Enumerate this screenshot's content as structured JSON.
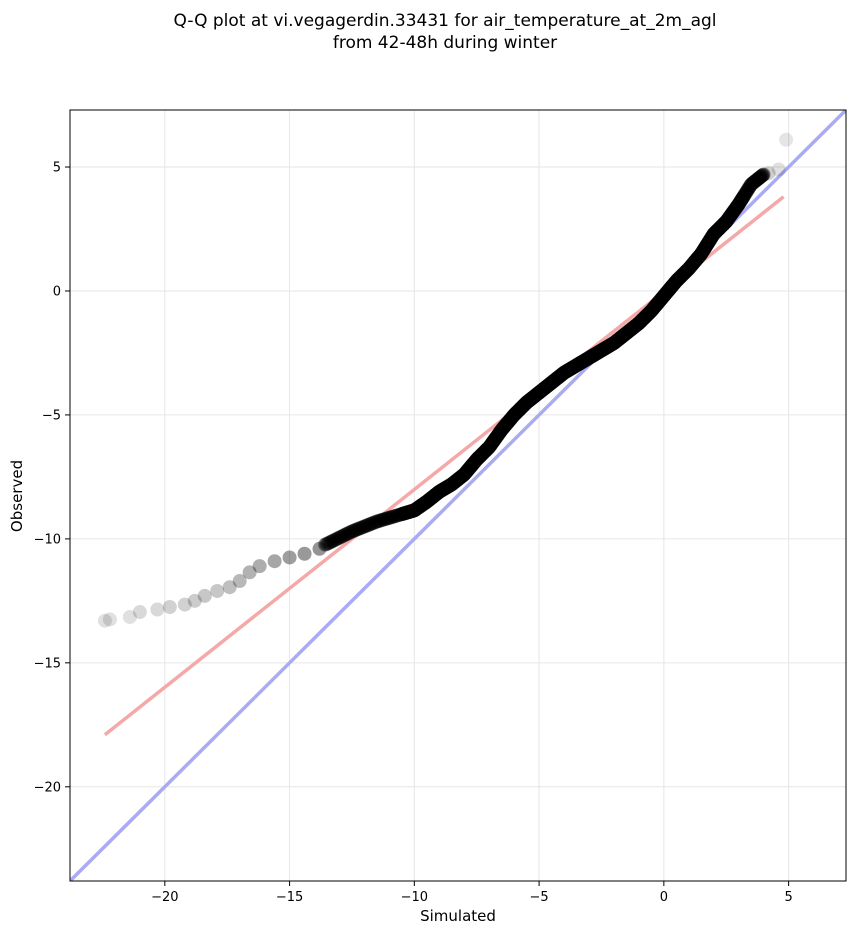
{
  "chart_data": {
    "type": "scatter",
    "title_lines": [
      "Q-Q plot at vi.vegagerdin.33431 for air_temperature_at_2m_agl",
      "from 42-48h during winter"
    ],
    "xlabel": "Simulated",
    "ylabel": "Observed",
    "xlim": [
      -23.8,
      7.3
    ],
    "ylim": [
      -23.8,
      7.3
    ],
    "xticks": [
      -20,
      -15,
      -10,
      -5,
      0,
      5
    ],
    "yticks": [
      -20,
      -15,
      -10,
      -5,
      0,
      5
    ],
    "grid": true,
    "colors": {
      "points": "#000000",
      "identity_line": "#aaaaf5",
      "fit_line": "#f5a8a8"
    },
    "identity_line": {
      "from": [
        -23.8,
        -23.8
      ],
      "to": [
        7.3,
        7.3
      ]
    },
    "fit_line": {
      "from": [
        -22.4,
        -17.9
      ],
      "to": [
        4.8,
        3.8
      ]
    },
    "quantile_curve": [
      [
        -22.4,
        -13.3
      ],
      [
        -21.5,
        -13.1
      ],
      [
        -20.5,
        -12.8
      ],
      [
        -19.5,
        -12.6
      ],
      [
        -18.5,
        -12.3
      ],
      [
        -17.5,
        -11.8
      ],
      [
        -16.5,
        -11.1
      ],
      [
        -15.5,
        -10.8
      ],
      [
        -14.5,
        -10.6
      ],
      [
        -13.5,
        -10.2
      ],
      [
        -12.5,
        -9.7
      ],
      [
        -11.5,
        -9.3
      ],
      [
        -10.5,
        -9.0
      ],
      [
        -10.0,
        -8.85
      ],
      [
        -9.5,
        -8.5
      ],
      [
        -9.0,
        -8.1
      ],
      [
        -8.5,
        -7.8
      ],
      [
        -8.0,
        -7.4
      ],
      [
        -7.5,
        -6.8
      ],
      [
        -7.0,
        -6.3
      ],
      [
        -6.5,
        -5.6
      ],
      [
        -6.0,
        -5.0
      ],
      [
        -5.5,
        -4.5
      ],
      [
        -5.0,
        -4.1
      ],
      [
        -4.5,
        -3.7
      ],
      [
        -4.0,
        -3.3
      ],
      [
        -3.5,
        -3.0
      ],
      [
        -3.0,
        -2.7
      ],
      [
        -2.5,
        -2.4
      ],
      [
        -2.0,
        -2.1
      ],
      [
        -1.5,
        -1.7
      ],
      [
        -1.0,
        -1.3
      ],
      [
        -0.5,
        -0.8
      ],
      [
        0.0,
        -0.2
      ],
      [
        0.5,
        0.4
      ],
      [
        1.0,
        0.9
      ],
      [
        1.5,
        1.5
      ],
      [
        2.0,
        2.3
      ],
      [
        2.5,
        2.8
      ],
      [
        3.0,
        3.5
      ],
      [
        3.5,
        4.3
      ],
      [
        4.0,
        4.7
      ],
      [
        4.6,
        4.9
      ]
    ],
    "tail_points": [
      [
        -22.4,
        -13.3,
        0.12
      ],
      [
        -22.2,
        -13.25,
        0.12
      ],
      [
        -21.4,
        -13.15,
        0.12
      ],
      [
        -21.0,
        -12.95,
        0.15
      ],
      [
        -20.3,
        -12.85,
        0.15
      ],
      [
        -19.8,
        -12.75,
        0.18
      ],
      [
        -19.2,
        -12.65,
        0.18
      ],
      [
        -18.8,
        -12.5,
        0.2
      ],
      [
        -18.4,
        -12.3,
        0.22
      ],
      [
        -17.9,
        -12.1,
        0.22
      ],
      [
        -17.4,
        -11.95,
        0.25
      ],
      [
        -17.0,
        -11.7,
        0.28
      ],
      [
        -16.6,
        -11.35,
        0.3
      ],
      [
        -16.2,
        -11.1,
        0.32
      ],
      [
        -15.6,
        -10.9,
        0.35
      ],
      [
        -15.0,
        -10.75,
        0.38
      ],
      [
        -14.4,
        -10.6,
        0.4
      ],
      [
        -13.8,
        -10.4,
        0.42
      ],
      [
        4.2,
        4.75,
        0.18
      ],
      [
        4.6,
        4.9,
        0.12
      ],
      [
        4.9,
        6.1,
        0.1
      ]
    ]
  }
}
